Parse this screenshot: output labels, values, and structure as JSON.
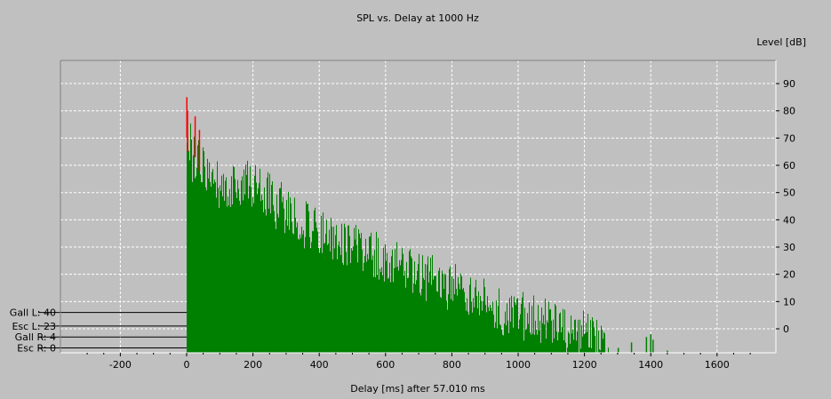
{
  "chart_data": {
    "type": "bar",
    "title": "SPL vs. Delay at  1000 Hz",
    "xlabel": "Delay [ms] after   57.010 ms",
    "ylabel": "Level [dB]",
    "xlim": [
      -380,
      1760
    ],
    "ylim": [
      -9,
      100
    ],
    "x_ticks": [
      -200,
      0,
      200,
      400,
      600,
      800,
      1000,
      1200,
      1400,
      1600
    ],
    "x_tick_labels": [
      "-200",
      "0",
      "200",
      "400",
      "600",
      "800",
      "1000",
      "1200",
      "1400",
      "1600"
    ],
    "y_ticks": [
      0,
      10,
      20,
      30,
      40,
      50,
      60,
      70,
      80,
      90
    ],
    "y_tick_labels": [
      "0",
      "10",
      "20",
      "30",
      "40",
      "50",
      "60",
      "70",
      "80",
      "90"
    ],
    "grid": true,
    "colors": {
      "background": "#c0c0c0",
      "plot": "#c0c0c0",
      "grid": "#ffffff",
      "bars": "#008000",
      "direct": "#ff0000"
    },
    "direct_sound": [
      {
        "x": 0,
        "y": 85
      },
      {
        "x": 2,
        "y": 80
      },
      {
        "x": 25,
        "y": 78
      },
      {
        "x": 38,
        "y": 73
      }
    ],
    "reflection_envelope": [
      {
        "x": 0,
        "y": 78
      },
      {
        "x": 20,
        "y": 70
      },
      {
        "x": 50,
        "y": 66
      },
      {
        "x": 100,
        "y": 60
      },
      {
        "x": 150,
        "y": 58
      },
      {
        "x": 175,
        "y": 63
      },
      {
        "x": 200,
        "y": 60
      },
      {
        "x": 260,
        "y": 55
      },
      {
        "x": 300,
        "y": 50
      },
      {
        "x": 350,
        "y": 47
      },
      {
        "x": 400,
        "y": 43
      },
      {
        "x": 500,
        "y": 38
      },
      {
        "x": 600,
        "y": 33
      },
      {
        "x": 700,
        "y": 27
      },
      {
        "x": 800,
        "y": 22
      },
      {
        "x": 900,
        "y": 17
      },
      {
        "x": 1000,
        "y": 12
      },
      {
        "x": 1100,
        "y": 8
      },
      {
        "x": 1200,
        "y": 5
      },
      {
        "x": 1250,
        "y": 3
      },
      {
        "x": 1280,
        "y": -9
      }
    ],
    "sparse_reflections": [
      {
        "x": 1300,
        "y": -7
      },
      {
        "x": 1340,
        "y": -5
      },
      {
        "x": 1385,
        "y": -3
      },
      {
        "x": 1398,
        "y": -2
      },
      {
        "x": 1405,
        "y": -4
      },
      {
        "x": 1448,
        "y": -8
      }
    ],
    "receivers": [
      {
        "label": "Gall L: 40",
        "level": 6
      },
      {
        "label": "Esc L: 23",
        "level": 1
      },
      {
        "label": "Gall R: 4",
        "level": -3
      },
      {
        "label": "Esc R: 0",
        "level": -7
      }
    ]
  }
}
